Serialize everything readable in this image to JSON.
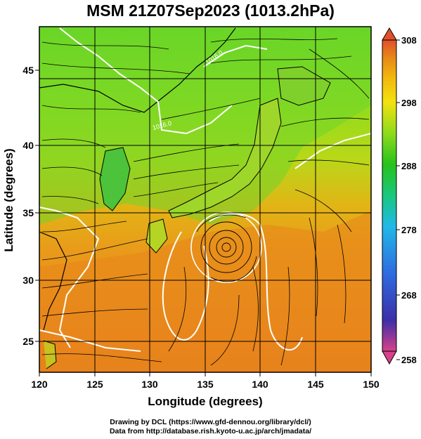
{
  "title": "MSM 21Z07Sep2023 (1013.2hPa)",
  "x_axis": {
    "label": "Longitude (degrees)",
    "ticks": [
      "120",
      "125",
      "130",
      "135",
      "140",
      "145",
      "150"
    ]
  },
  "y_axis": {
    "label": "Latitude  (degrees)",
    "ticks": [
      "25",
      "30",
      "35",
      "40",
      "45"
    ]
  },
  "colorbar": {
    "ticks": [
      "308",
      "298",
      "288",
      "278",
      "268",
      "258"
    ],
    "colors": [
      "#d9408a",
      "#3a2fa8",
      "#2f6be0",
      "#22b8e8",
      "#19c77f",
      "#27c21b",
      "#8edb1c",
      "#f2e20f",
      "#f2b70e",
      "#e88a18",
      "#e0502a"
    ]
  },
  "map": {
    "contour_labels": [
      "1016.0",
      "1016.0"
    ]
  },
  "credits": {
    "line1": "Drawing by DCL (https://www.gfd-dennou.org/library/dcl/)",
    "line2": "Data from http://database.rish.kyoto-u.ac.jp/arch/jmadata/"
  }
}
